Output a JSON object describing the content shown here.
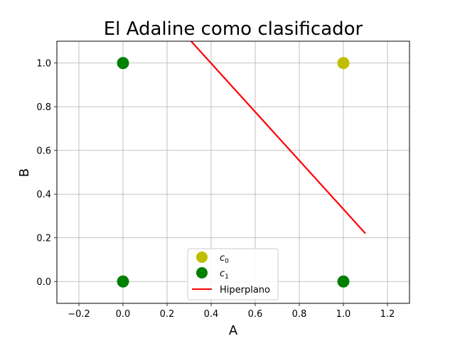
{
  "chart_data": {
    "type": "scatter",
    "title": "El Adaline como clasificador",
    "xlabel": "A",
    "ylabel": "B",
    "xlim": [
      -0.3,
      1.3
    ],
    "ylim": [
      -0.1,
      1.1
    ],
    "grid": true,
    "xticks": [
      -0.2,
      0.0,
      0.2,
      0.4,
      0.6,
      0.8,
      1.0,
      1.2
    ],
    "xtick_labels": [
      "−0.2",
      "0.0",
      "0.2",
      "0.4",
      "0.6",
      "0.8",
      "1.0",
      "1.2"
    ],
    "yticks": [
      0.0,
      0.2,
      0.4,
      0.6,
      0.8,
      1.0
    ],
    "ytick_labels": [
      "0.0",
      "0.2",
      "0.4",
      "0.6",
      "0.8",
      "1.0"
    ],
    "series": [
      {
        "name": "c",
        "subscript": "0",
        "color": "#bfbf00",
        "points": [
          [
            1.0,
            1.0
          ]
        ]
      },
      {
        "name": "c",
        "subscript": "1",
        "color": "#008000",
        "points": [
          [
            0.0,
            1.0
          ],
          [
            0.0,
            0.0
          ],
          [
            1.0,
            0.0
          ]
        ]
      }
    ],
    "line": {
      "name": "Hiperplano",
      "color": "#ff0000",
      "points": [
        [
          0.3,
          1.11
        ],
        [
          1.1,
          0.22
        ]
      ]
    },
    "legend_position": "lower center"
  }
}
